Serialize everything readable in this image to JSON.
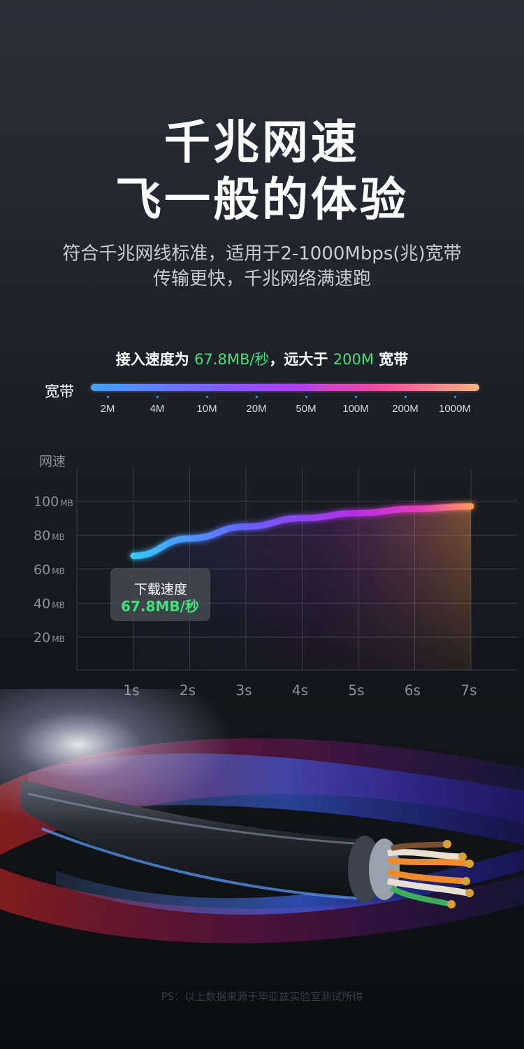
{
  "hero": {
    "title_line1": "千兆网速",
    "title_line2": "飞一般的体验",
    "subtitle_line1": "符合千兆网线标准，适用于2-1000Mbps(兆)宽带",
    "subtitle_line2": "传输更快，千兆网络满速跑"
  },
  "speed_summary": {
    "prefix": "接入速度为",
    "speed": "67.8MB/秒",
    "middle": "，远大于",
    "bandwidth": "200M",
    "suffix": "宽带"
  },
  "bandwidth_scale": {
    "label": "宽带",
    "ticks": [
      "2M",
      "4M",
      "10M",
      "20M",
      "50M",
      "100M",
      "200M",
      "1000M"
    ]
  },
  "callout": {
    "label": "下载速度",
    "value": "67.8MB/秒"
  },
  "chart_data": {
    "type": "line",
    "ylabel": "网速",
    "y_unit": "MB",
    "y_ticks": [
      20,
      40,
      60,
      80,
      100
    ],
    "x_ticks": [
      "1s",
      "2s",
      "3s",
      "4s",
      "5s",
      "6s",
      "7s"
    ],
    "x": [
      1,
      2,
      3,
      4,
      5,
      6,
      7
    ],
    "series": [
      {
        "values": [
          67.8,
          78,
          85,
          90,
          93,
          95.5,
          97
        ]
      }
    ],
    "grid": true
  },
  "footnote": "PS：以上数据来源于毕亚兹实验室测试所得",
  "colors": {
    "accent_green": "#3ee27a",
    "gradient_start": "#3aa6ff",
    "gradient_mid": "#b43cf0",
    "gradient_end": "#ffb37a"
  }
}
